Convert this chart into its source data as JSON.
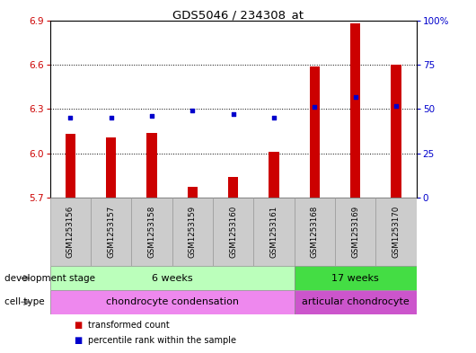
{
  "title": "GDS5046 / 234308_at",
  "samples": [
    "GSM1253156",
    "GSM1253157",
    "GSM1253158",
    "GSM1253159",
    "GSM1253160",
    "GSM1253161",
    "GSM1253168",
    "GSM1253169",
    "GSM1253170"
  ],
  "transformed_count": [
    6.13,
    6.11,
    6.14,
    5.77,
    5.84,
    6.01,
    6.59,
    6.88,
    6.6
  ],
  "percentile_rank": [
    45,
    45,
    46,
    49,
    47,
    45,
    51,
    57,
    52
  ],
  "ylim_left": [
    5.7,
    6.9
  ],
  "ylim_right": [
    0,
    100
  ],
  "yticks_left": [
    5.7,
    6.0,
    6.3,
    6.6,
    6.9
  ],
  "yticks_right": [
    0,
    25,
    50,
    75,
    100
  ],
  "bar_color": "#cc0000",
  "dot_color": "#0000cc",
  "bar_bottom": 5.7,
  "bar_width": 0.25,
  "groups": [
    {
      "label": "6 weeks",
      "start": 0,
      "end": 6,
      "color": "#bbffbb"
    },
    {
      "label": "17 weeks",
      "start": 6,
      "end": 9,
      "color": "#44dd44"
    }
  ],
  "cell_types": [
    {
      "label": "chondrocyte condensation",
      "start": 0,
      "end": 6,
      "color": "#ee88ee"
    },
    {
      "label": "articular chondrocyte",
      "start": 6,
      "end": 9,
      "color": "#cc55cc"
    }
  ],
  "dev_stage_label": "development stage",
  "cell_type_label": "cell type",
  "legend_bar_label": "transformed count",
  "legend_dot_label": "percentile rank within the sample",
  "sample_box_color": "#cccccc",
  "tick_label_color_left": "#cc0000",
  "tick_label_color_right": "#0000cc"
}
